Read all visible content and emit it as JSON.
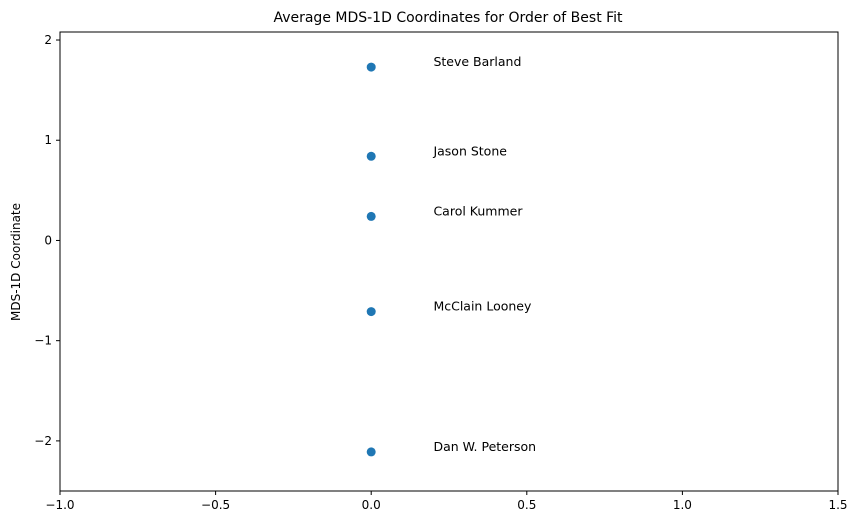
{
  "chart_data": {
    "type": "scatter",
    "title": "Average MDS-1D Coordinates for Order of Best Fit",
    "xlabel": "",
    "ylabel": "MDS-1D Coordinate",
    "xlim": [
      -1.0,
      1.5
    ],
    "ylim": [
      -2.5,
      2.08
    ],
    "x_ticks": [
      -1.0,
      -0.5,
      0.0,
      0.5,
      1.0,
      1.5
    ],
    "x_tick_labels": [
      "−1.0",
      "−0.5",
      "0.0",
      "0.5",
      "1.0",
      "1.5"
    ],
    "y_ticks": [
      2,
      1,
      0,
      -1,
      -2
    ],
    "y_tick_labels": [
      "2",
      "1",
      "0",
      "−1",
      "−2"
    ],
    "grid": false,
    "marker_color": "#1f77b4",
    "label_x_offset": 0.2,
    "points": [
      {
        "name": "Steve Barland",
        "x": 0.0,
        "y": 1.73
      },
      {
        "name": "Jason Stone",
        "x": 0.0,
        "y": 0.84
      },
      {
        "name": "Carol Kummer",
        "x": 0.0,
        "y": 0.24
      },
      {
        "name": "McClain Looney",
        "x": 0.0,
        "y": -0.71
      },
      {
        "name": "Dan W. Peterson",
        "x": 0.0,
        "y": -2.11
      }
    ]
  }
}
